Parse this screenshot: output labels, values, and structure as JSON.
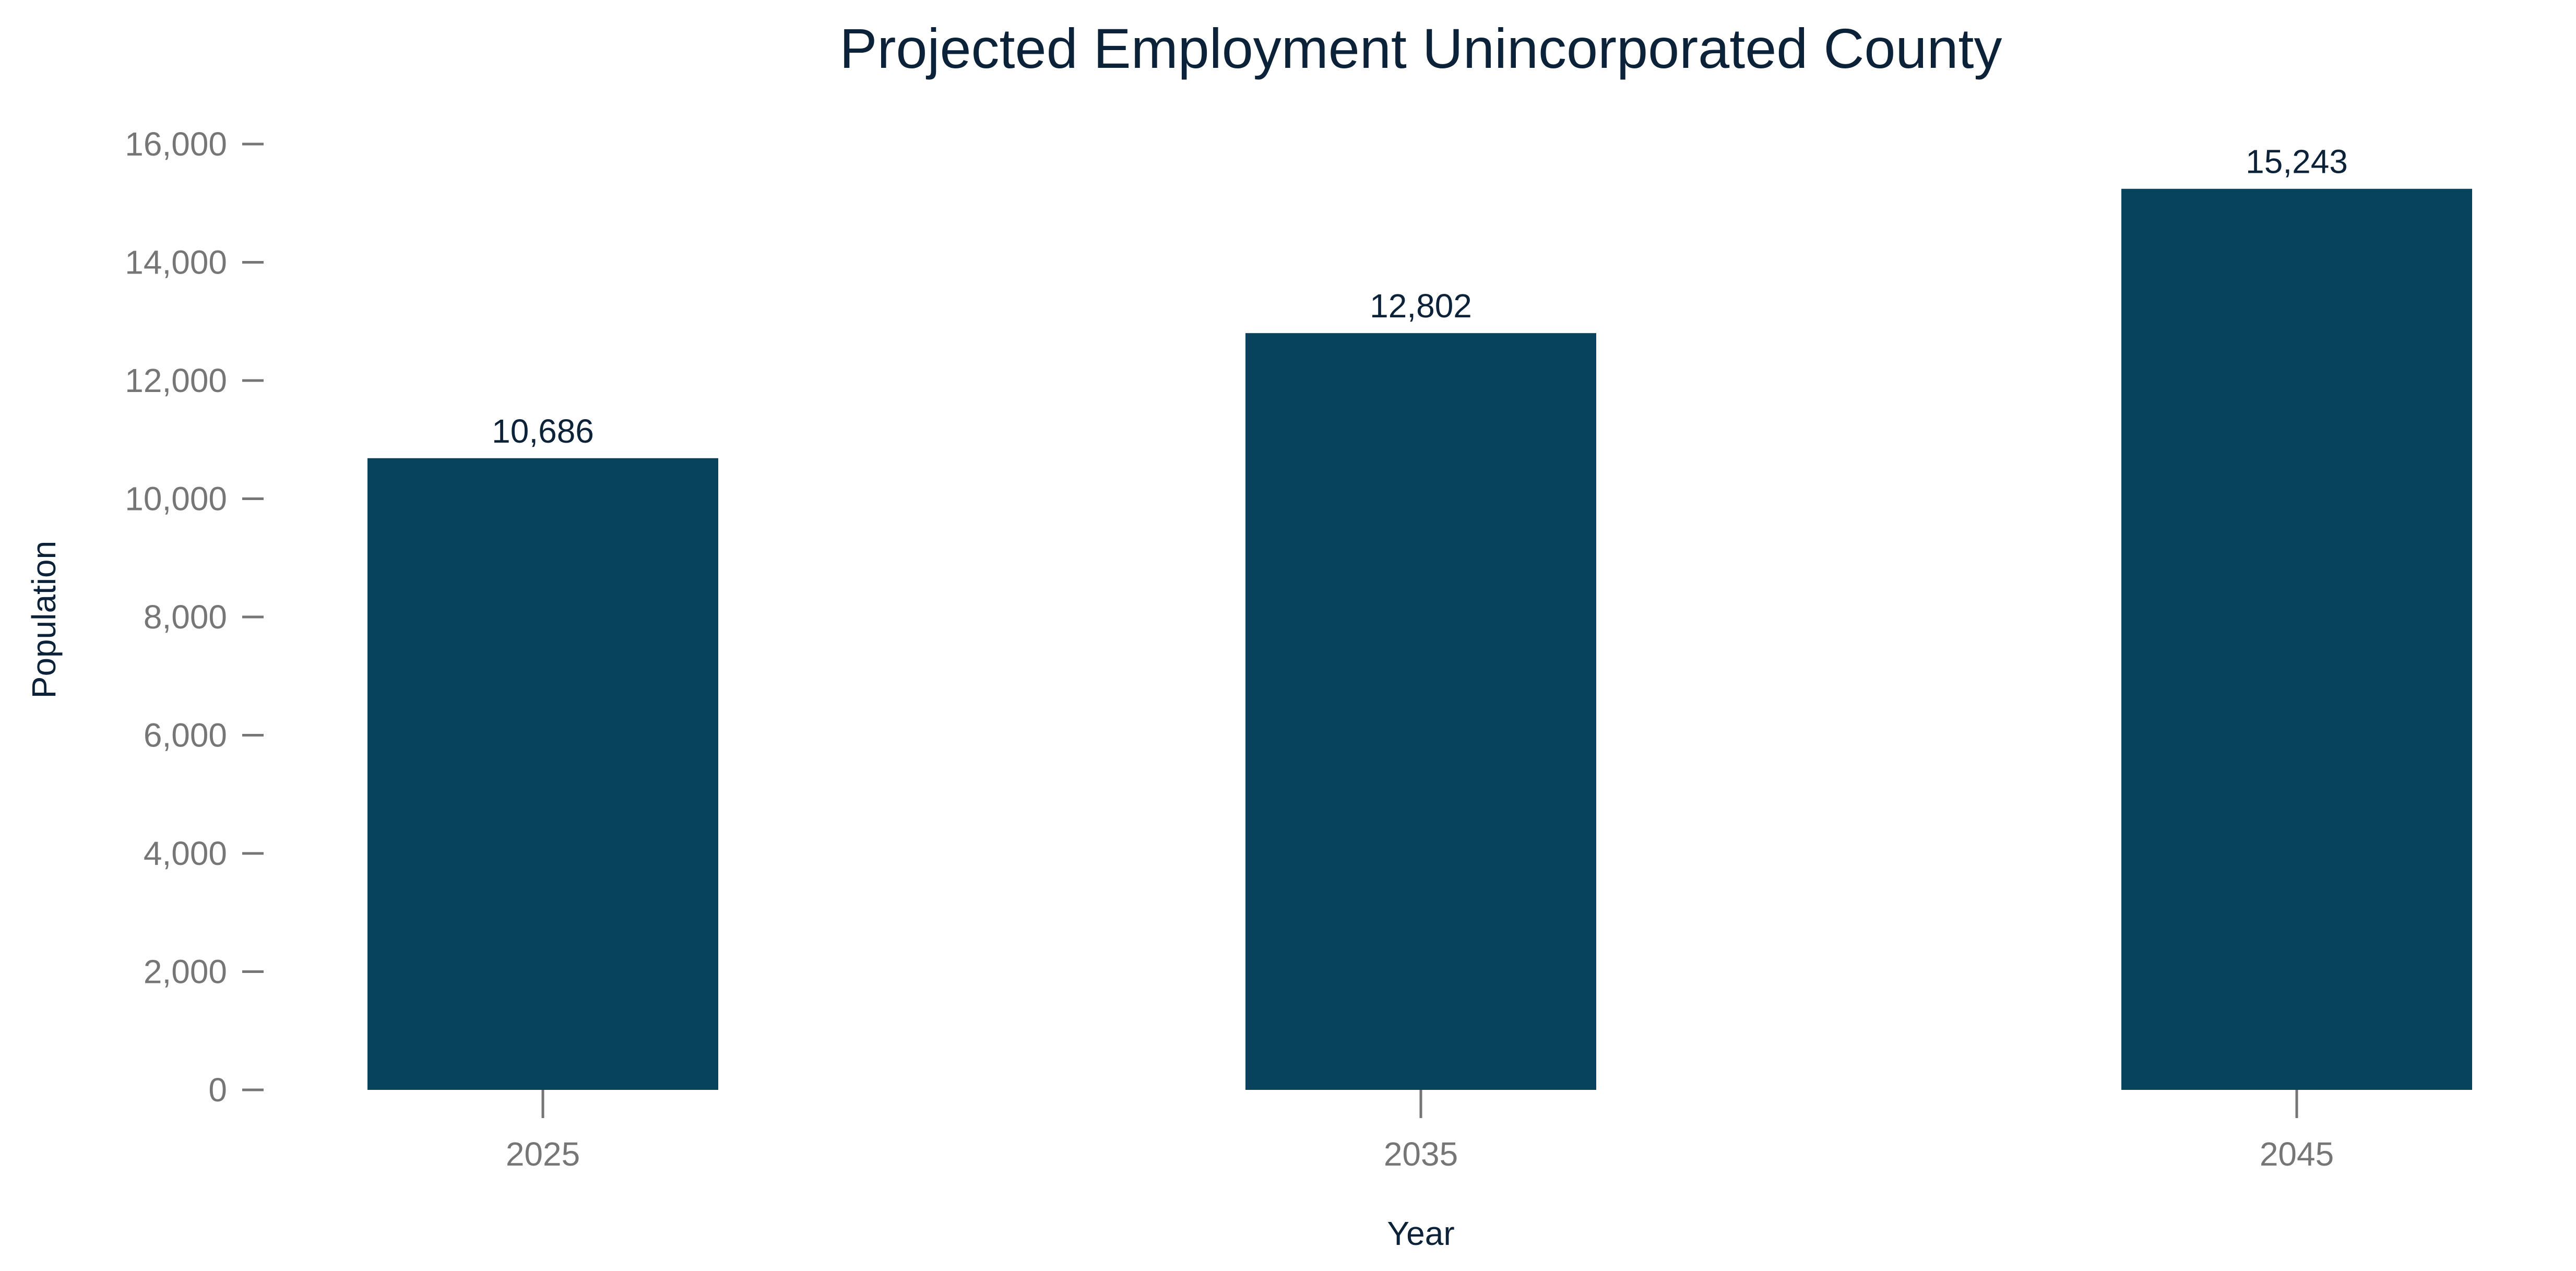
{
  "chart_data": {
    "type": "bar",
    "title": "Projected Employment Unincorporated County",
    "xlabel": "Year",
    "ylabel": "Population",
    "categories": [
      "2025",
      "2035",
      "2045"
    ],
    "values": [
      10686,
      12802,
      15243
    ],
    "data_labels": [
      "10,686",
      "12,802",
      "15,243"
    ],
    "ylim": [
      0,
      16000
    ],
    "yticks": [
      0,
      2000,
      4000,
      6000,
      8000,
      10000,
      12000,
      14000,
      16000
    ],
    "ytick_labels": [
      "0",
      "2,000",
      "4,000",
      "6,000",
      "8,000",
      "10,000",
      "12,000",
      "14,000",
      "16,000"
    ],
    "grid": false,
    "legend": "none",
    "bar_color": "#08435d"
  }
}
